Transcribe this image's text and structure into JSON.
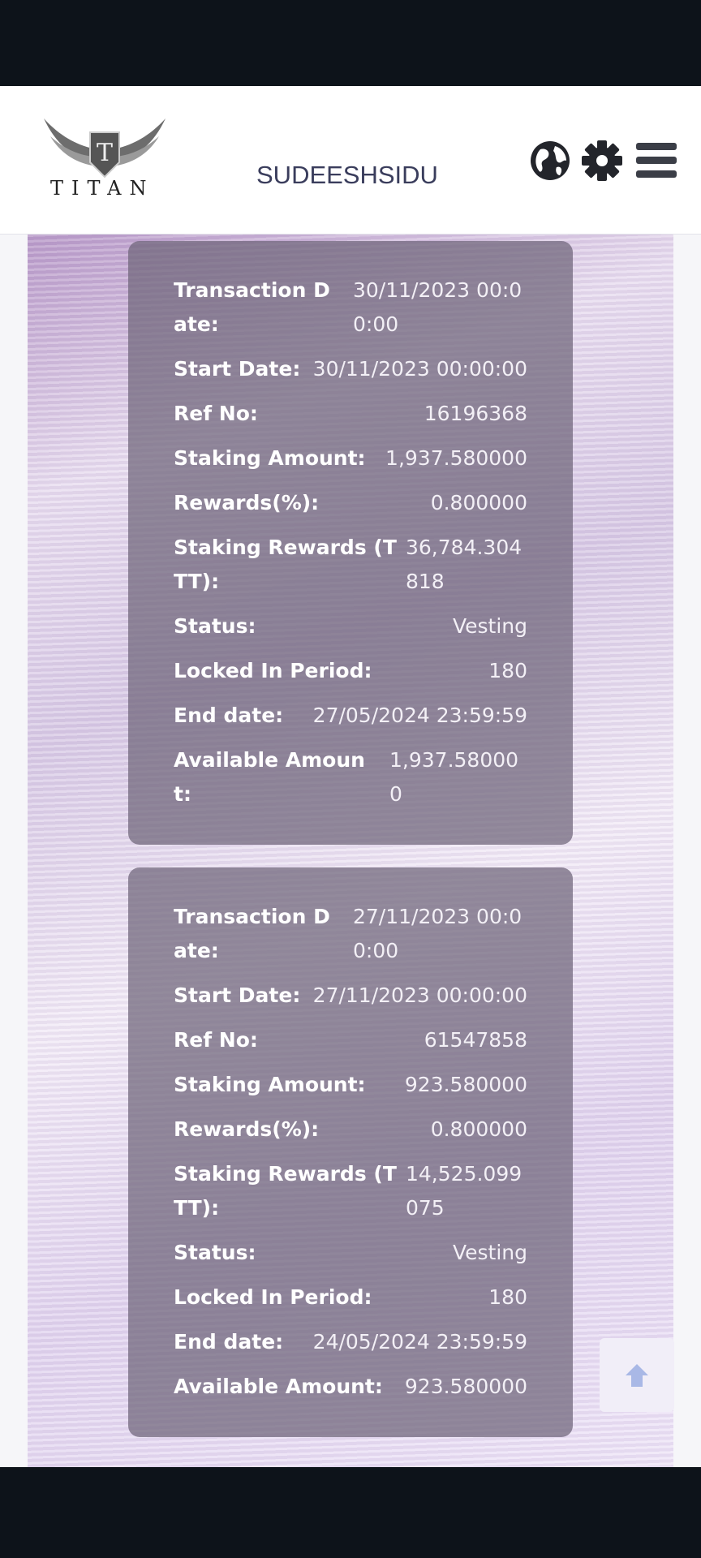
{
  "header": {
    "logo_text": "TITAN",
    "username": "SUDEESHSIDU",
    "icons": [
      "globe-icon",
      "gear-icon",
      "hamburger-menu-icon"
    ]
  },
  "cards": [
    {
      "rows": [
        {
          "label": "Transaction Date:",
          "value": "30/11/2023 00:00:00"
        },
        {
          "label": "Start Date:",
          "value": "30/11/2023 00:00:00"
        },
        {
          "label": "Ref No:",
          "value": "16196368"
        },
        {
          "label": "Staking Amount:",
          "value": "1,937.580000"
        },
        {
          "label": "Rewards(%):",
          "value": "0.800000"
        },
        {
          "label": "Staking Rewards (TTT):",
          "value": "36,784.304818"
        },
        {
          "label": "Status:",
          "value": "Vesting"
        },
        {
          "label": "Locked In Period:",
          "value": "180"
        },
        {
          "label": "End date:",
          "value": "27/05/2024 23:59:59"
        },
        {
          "label": "Available Amount:",
          "value": "1,937.580000"
        }
      ]
    },
    {
      "rows": [
        {
          "label": "Transaction Date:",
          "value": "27/11/2023 00:00:00"
        },
        {
          "label": "Start Date:",
          "value": "27/11/2023 00:00:00"
        },
        {
          "label": "Ref No:",
          "value": "61547858"
        },
        {
          "label": "Staking Amount:",
          "value": "923.580000"
        },
        {
          "label": "Rewards(%):",
          "value": "0.800000"
        },
        {
          "label": "Staking Rewards (TTT):",
          "value": "14,525.099075"
        },
        {
          "label": "Status:",
          "value": "Vesting"
        },
        {
          "label": "Locked In Period:",
          "value": "180"
        },
        {
          "label": "End date:",
          "value": "24/05/2024 23:59:59"
        },
        {
          "label": "Available Amount:",
          "value": "923.580000"
        }
      ]
    }
  ],
  "colors": {
    "card_bg": "#6e6478",
    "header_text": "#3a3d5c",
    "scroll_arrow": "#a9b8e6"
  }
}
